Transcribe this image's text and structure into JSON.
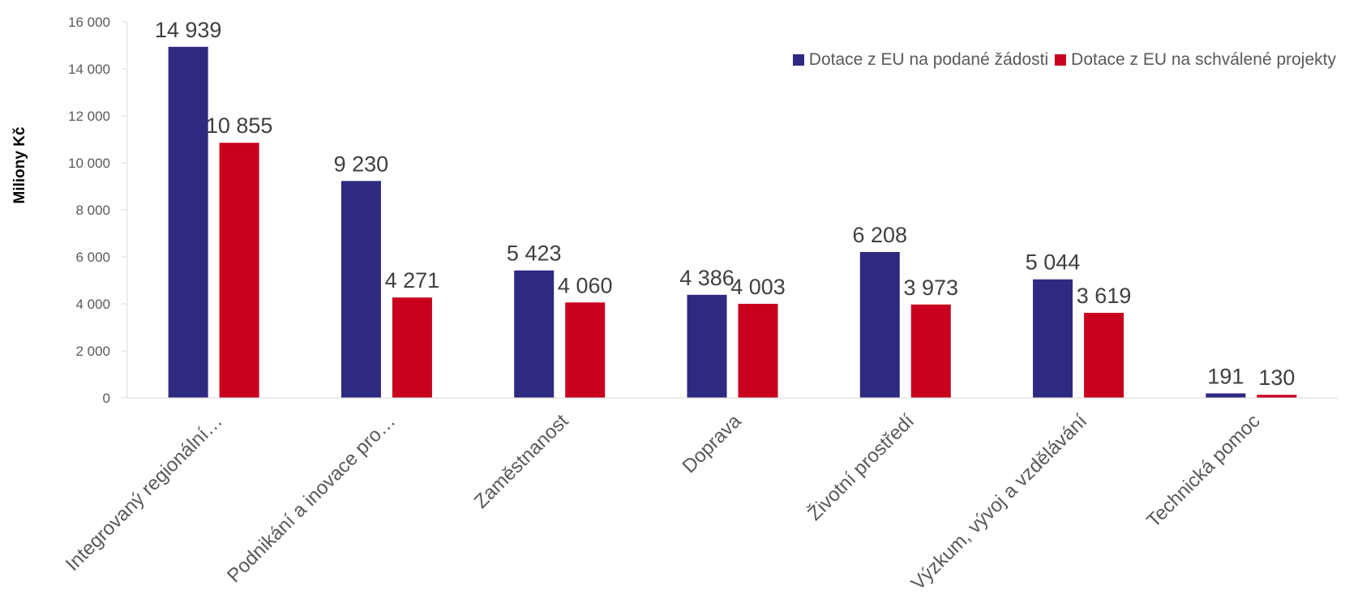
{
  "chart_data": {
    "type": "bar",
    "title": "",
    "xlabel": "",
    "ylabel": "Miliony Kč",
    "ylim": [
      0,
      16000
    ],
    "yticks": [
      0,
      2000,
      4000,
      6000,
      8000,
      10000,
      12000,
      14000,
      16000
    ],
    "ytick_labels": [
      "0",
      "2 000",
      "4 000",
      "6 000",
      "8 000",
      "10 000",
      "12 000",
      "14 000",
      "16 000"
    ],
    "grid": false,
    "legend_position": "top-right",
    "categories": [
      "Integrovaný regionální…",
      "Podnikání a inovace pro…",
      "Zaměstnanost",
      "Doprava",
      "Životní prostředí",
      "Výzkum, vývoj a vzdělávání",
      "Technická pomoc"
    ],
    "series": [
      {
        "name": "Dotace z EU na podané žádosti",
        "color": "#2E2A7F",
        "values": [
          14939,
          9230,
          5423,
          4386,
          6208,
          5044,
          191
        ],
        "labels": [
          "14 939",
          "9 230",
          "5 423",
          "4 386",
          "6 208",
          "5 044",
          "191"
        ]
      },
      {
        "name": "Dotace z EU na schválené projekty",
        "color": "#C8001E",
        "values": [
          10855,
          4271,
          4060,
          4003,
          3973,
          3619,
          130
        ],
        "labels": [
          "10 855",
          "4 271",
          "4 060",
          "4 003",
          "3 973",
          "3 619",
          "130"
        ]
      }
    ]
  }
}
